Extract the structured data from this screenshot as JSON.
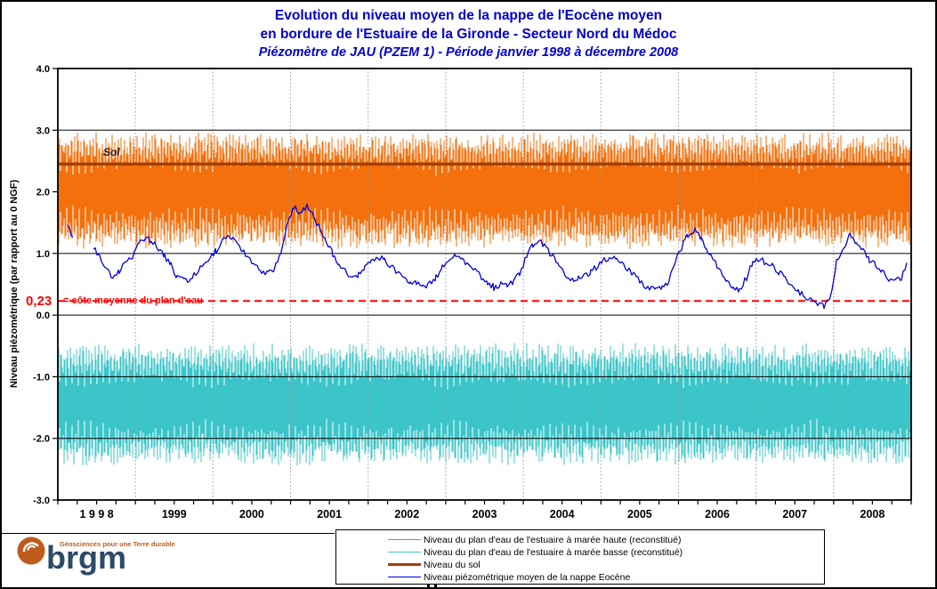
{
  "page": {
    "title_line1": "Evolution du niveau moyen de la nappe de l'Eocène moyen",
    "title_line2": "en bordure de l'Estuaire de la Gironde - Secteur Nord du Médoc",
    "title_line3": "Piézomètre de JAU (PZEM 1) - Période janvier 1998 à décembre 2008"
  },
  "chart_data": {
    "type": "line",
    "title": "Evolution du niveau moyen de la nappe de l'Eocène moyen en bordure de l'Estuaire de la Gironde - Secteur Nord du Médoc",
    "subtitle": "Piézomètre de JAU (PZEM 1) - Période janvier 1998 à décembre 2008",
    "ylabel": "Niveau piézométrique (par rapport au 0 NGF)",
    "xlabel": "",
    "ylim": [
      -3.0,
      4.0
    ],
    "xlim_years": [
      1998,
      2009
    ],
    "grid_vertical_years": [
      1999,
      2000,
      2001,
      2002,
      2003,
      2004,
      2005,
      2006,
      2007,
      2008
    ],
    "yticks": [
      {
        "value": 4.0,
        "style": "border"
      },
      {
        "value": 3.0,
        "style": "solid"
      },
      {
        "value": 2.0,
        "style": "dashdot"
      },
      {
        "value": 1.0,
        "style": "solid"
      },
      {
        "value": 0.0,
        "style": "solid"
      },
      {
        "value": -1.0,
        "style": "solid"
      },
      {
        "value": -2.0,
        "style": "solid"
      },
      {
        "value": -3.0,
        "style": "border"
      }
    ],
    "xtick_minor_interval_years": 0.25,
    "year_labels": [
      {
        "label": "1 9 9 8",
        "center": 1998.5
      },
      {
        "label": "1999",
        "center": 1999.5
      },
      {
        "label": "2000",
        "center": 2000.5
      },
      {
        "label": "2001",
        "center": 2001.5
      },
      {
        "label": "2002",
        "center": 2002.5
      },
      {
        "label": "2003",
        "center": 2003.5
      },
      {
        "label": "2004",
        "center": 2004.5
      },
      {
        "label": "2005",
        "center": 2005.5
      },
      {
        "label": "2006",
        "center": 2006.5
      },
      {
        "label": "2007",
        "center": 2007.5
      },
      {
        "label": "2008",
        "center": 2008.5
      }
    ],
    "annotations": {
      "sol_label": "Sol",
      "ref_value_label": "0,23",
      "ref_text": "= côte moyenne du plan d'eau"
    },
    "reference_line": {
      "value": 0.23,
      "color": "#FF0000",
      "style": "dashed"
    },
    "series": [
      {
        "id": "maree_haute",
        "name": "Niveau du plan d'eau de l'estuaire à marée haute (reconstitué)",
        "type": "tidal_band",
        "color": "#F4700C",
        "width": 1,
        "mean": 2.02,
        "amplitude_min": 0.32,
        "amplitude_max": 0.95,
        "beats_per_year": 25
      },
      {
        "id": "maree_basse",
        "name": "Niveau du plan d'eau de l'estuaire à marée basse (reconstitué)",
        "type": "tidal_band",
        "color": "#3BC5C9",
        "width": 1,
        "mean": -1.45,
        "amplitude_min": 0.32,
        "amplitude_max": 1.0,
        "beats_per_year": 25
      },
      {
        "id": "sol",
        "name": "Niveau du sol",
        "type": "constant",
        "color": "#A33F00",
        "width": 3.5,
        "value": 2.45
      },
      {
        "id": "nappe_eocene",
        "name": "Niveau piézométrique moyen de la nappe Eocène",
        "type": "monthly_line",
        "color": "#0000DD",
        "width": 1.3,
        "start_year": 1998,
        "values": [
          null,
          1.45,
          1.25,
          null,
          null,
          1.1,
          0.95,
          0.75,
          0.62,
          0.7,
          0.85,
          0.95,
          1.15,
          1.25,
          1.2,
          1.1,
          0.95,
          0.8,
          0.62,
          0.55,
          0.6,
          0.7,
          0.8,
          0.92,
          1.05,
          1.2,
          1.3,
          1.2,
          1.05,
          0.92,
          0.8,
          0.7,
          0.66,
          0.75,
          1.0,
          1.5,
          1.75,
          1.65,
          1.78,
          1.6,
          1.42,
          1.2,
          1.0,
          0.82,
          0.7,
          0.62,
          0.66,
          0.78,
          0.9,
          0.95,
          0.9,
          0.8,
          0.7,
          0.62,
          0.55,
          0.5,
          0.45,
          0.5,
          0.62,
          0.78,
          0.88,
          0.97,
          0.92,
          0.82,
          0.72,
          0.62,
          0.52,
          0.45,
          0.5,
          0.46,
          0.56,
          0.7,
          0.95,
          1.15,
          1.22,
          1.1,
          0.95,
          0.8,
          0.65,
          0.55,
          0.6,
          0.65,
          0.7,
          0.8,
          0.9,
          0.95,
          0.9,
          0.8,
          0.7,
          0.6,
          0.5,
          0.45,
          0.4,
          0.45,
          0.55,
          0.9,
          1.1,
          1.3,
          1.36,
          1.25,
          1.05,
          0.9,
          0.7,
          0.55,
          0.45,
          0.42,
          0.6,
          0.85,
          0.92,
          0.85,
          0.8,
          0.7,
          0.6,
          0.5,
          0.4,
          0.3,
          0.24,
          0.18,
          0.14,
          0.3,
          0.9,
          1.1,
          1.28,
          1.2,
          1.05,
          0.9,
          0.8,
          0.7,
          0.6,
          0.55,
          0.62,
          0.85
        ]
      }
    ],
    "legend_position": "bottom-center"
  },
  "legend": {
    "items_note": "labels identical to chart_data.series names"
  },
  "logo": {
    "brand": "brgm",
    "tagline": "Géosciences pour une Terre durable"
  },
  "colors": {
    "title_blue": "#0000CC",
    "maree_haute_orange": "#F4700C",
    "maree_basse_cyan": "#3BC5C9",
    "sol_brown": "#A33F00",
    "nappe_blue": "#0000DD",
    "reference_red": "#FF0000",
    "grid_gray": "#999999",
    "logo_circle": "#BF5B1D",
    "logo_text": "#2C4A66"
  }
}
